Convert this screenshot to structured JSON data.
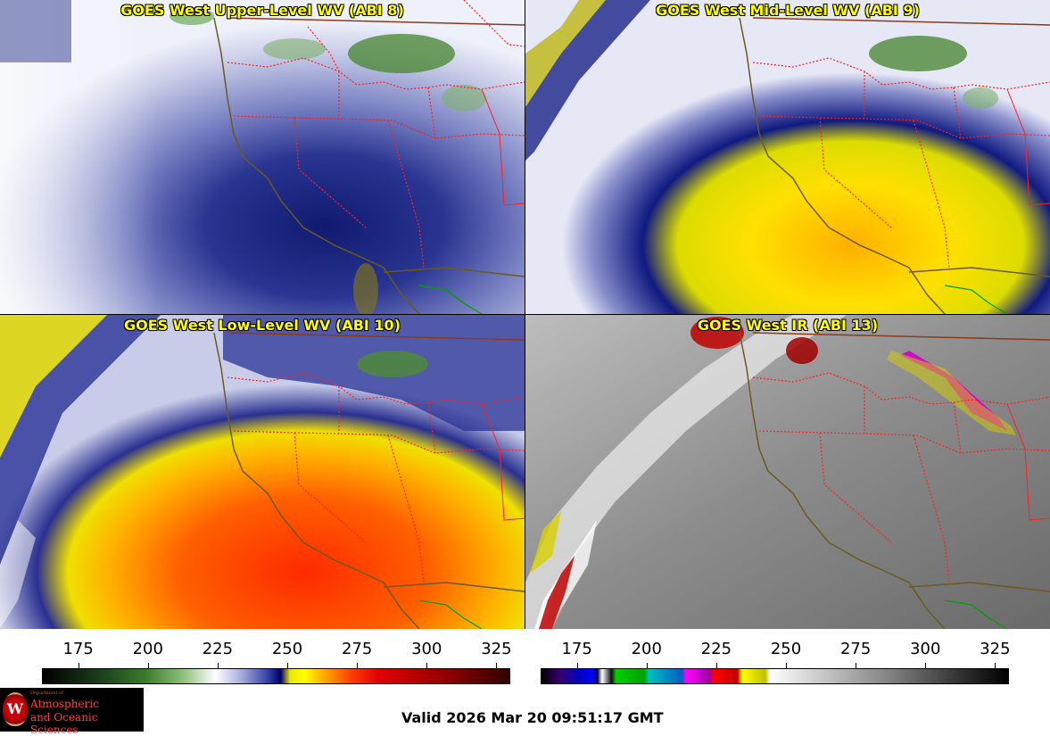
{
  "panels": [
    {
      "id": "upper",
      "title": "GOES West Upper-Level WV (ABI 8)"
    },
    {
      "id": "mid",
      "title": "GOES West Mid-Level WV (ABI 9)"
    },
    {
      "id": "low",
      "title": "GOES West Low-Level WV (ABI 10)"
    },
    {
      "id": "ir",
      "title": "GOES West IR (ABI 13)"
    }
  ],
  "scales": {
    "wv": {
      "ticks": [
        "175",
        "200",
        "225",
        "250",
        "275",
        "300",
        "325"
      ],
      "min": 162,
      "max": 330
    },
    "ir": {
      "ticks": [
        "175",
        "200",
        "225",
        "250",
        "275",
        "300",
        "325"
      ],
      "min": 162,
      "max": 330
    }
  },
  "logo": {
    "seal_letter": "W",
    "small_text": "Department of",
    "line1": "Atmospheric",
    "line2": "and Oceanic Sciences"
  },
  "valid_time": "Valid 2026 Mar 20 09:51:17 GMT",
  "colors": {
    "title": "#ffff00",
    "state_border": "#ff2020",
    "coast": "#6b5a1e",
    "mexico_border": "#00a000"
  }
}
